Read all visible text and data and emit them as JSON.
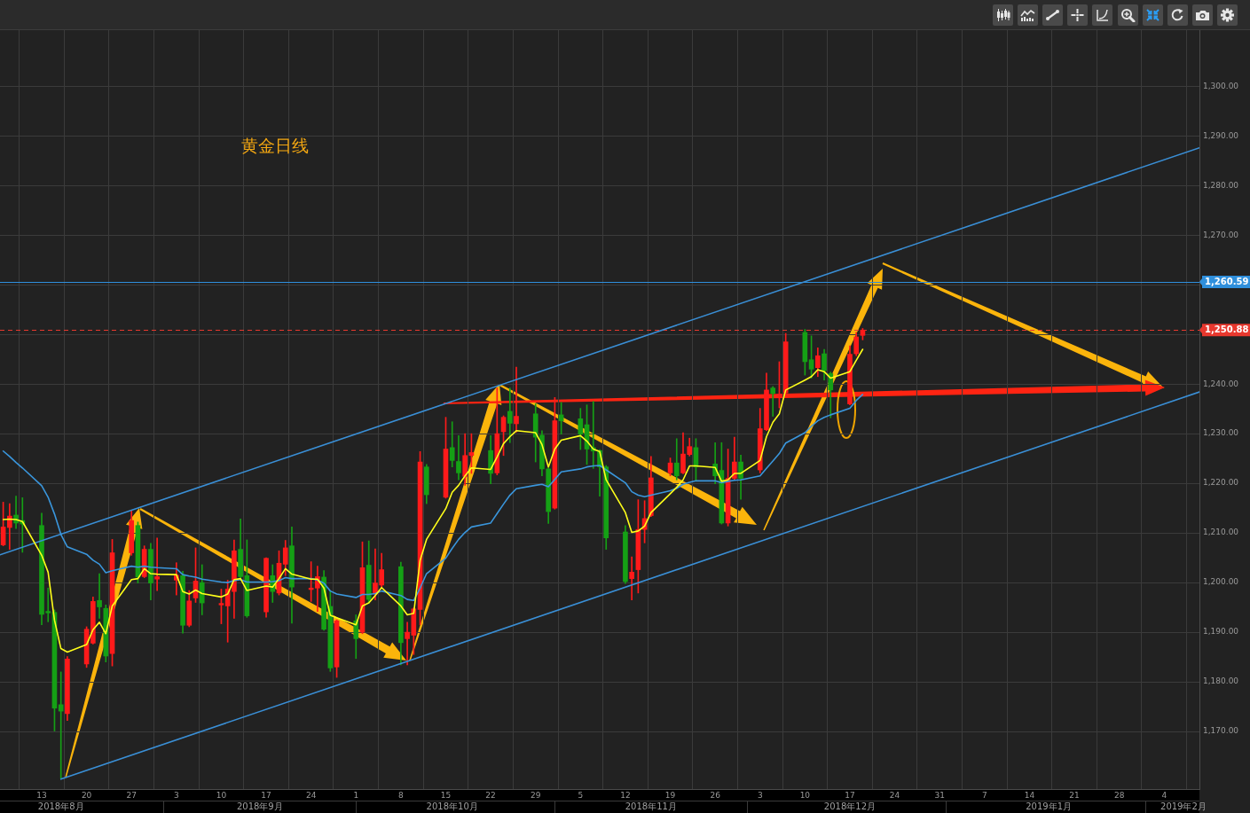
{
  "chart_data": {
    "type": "candlestick",
    "title": "黄金日线",
    "x": [
      "2018-08-07",
      "2018-08-08",
      "2018-08-09",
      "2018-08-10",
      "2018-08-13",
      "2018-08-14",
      "2018-08-15",
      "2018-08-16",
      "2018-08-17",
      "2018-08-20",
      "2018-08-21",
      "2018-08-22",
      "2018-08-23",
      "2018-08-24",
      "2018-08-27",
      "2018-08-28",
      "2018-08-29",
      "2018-08-30",
      "2018-08-31",
      "2018-09-03",
      "2018-09-04",
      "2018-09-05",
      "2018-09-06",
      "2018-09-07",
      "2018-09-10",
      "2018-09-11",
      "2018-09-12",
      "2018-09-13",
      "2018-09-14",
      "2018-09-17",
      "2018-09-18",
      "2018-09-19",
      "2018-09-20",
      "2018-09-21",
      "2018-09-24",
      "2018-09-25",
      "2018-09-26",
      "2018-09-27",
      "2018-09-28",
      "2018-10-01",
      "2018-10-02",
      "2018-10-03",
      "2018-10-04",
      "2018-10-05",
      "2018-10-08",
      "2018-10-09",
      "2018-10-10",
      "2018-10-11",
      "2018-10-12",
      "2018-10-15",
      "2018-10-16",
      "2018-10-17",
      "2018-10-18",
      "2018-10-19",
      "2018-10-22",
      "2018-10-23",
      "2018-10-24",
      "2018-10-25",
      "2018-10-26",
      "2018-10-29",
      "2018-10-30",
      "2018-10-31",
      "2018-11-01",
      "2018-11-02",
      "2018-11-05",
      "2018-11-06",
      "2018-11-07",
      "2018-11-08",
      "2018-11-09",
      "2018-11-12",
      "2018-11-13",
      "2018-11-14",
      "2018-11-15",
      "2018-11-16",
      "2018-11-19",
      "2018-11-20",
      "2018-11-21",
      "2018-11-22",
      "2018-11-23",
      "2018-11-26",
      "2018-11-27",
      "2018-11-28",
      "2018-11-29",
      "2018-11-30",
      "2018-12-03",
      "2018-12-04",
      "2018-12-05",
      "2018-12-06",
      "2018-12-07",
      "2018-12-10",
      "2018-12-11",
      "2018-12-12",
      "2018-12-13",
      "2018-12-14",
      "2018-12-17",
      "2018-12-18",
      "2018-12-19"
    ],
    "ohlc": [
      [
        1207.6,
        1216.2,
        1207.4,
        1211.2
      ],
      [
        1211.1,
        1215.9,
        1206.7,
        1213.4
      ],
      [
        1213.6,
        1217.4,
        1210.9,
        1212.0
      ],
      [
        1212.5,
        1217.1,
        1206.1,
        1211.8
      ],
      [
        1211.5,
        1214.0,
        1191.5,
        1193.6
      ],
      [
        1194.2,
        1198.9,
        1192.1,
        1193.9
      ],
      [
        1194.0,
        1194.5,
        1170.1,
        1174.7
      ],
      [
        1175.4,
        1182.0,
        1160.6,
        1174.1
      ],
      [
        1173.6,
        1185.1,
        1172.2,
        1184.6
      ],
      [
        1183.6,
        1191.1,
        1182.9,
        1190.6
      ],
      [
        1187.8,
        1197.1,
        1187.6,
        1196.2
      ],
      [
        1196.4,
        1201.8,
        1192.8,
        1195.1
      ],
      [
        1194.8,
        1195.5,
        1184.0,
        1185.2
      ],
      [
        1185.7,
        1208.7,
        1183.2,
        1206.0
      ],
      [
        1206.0,
        1214.5,
        1205.5,
        1212.5
      ],
      [
        1211.5,
        1212.2,
        1199.9,
        1201.1
      ],
      [
        1201.2,
        1207.4,
        1201.0,
        1206.7
      ],
      [
        1206.7,
        1207.9,
        1196.5,
        1199.9
      ],
      [
        1200.7,
        1209.0,
        1198.4,
        1201.2
      ],
      [
        1200.5,
        1204.0,
        1197.5,
        1201.5
      ],
      [
        1201.4,
        1202.3,
        1189.8,
        1191.4
      ],
      [
        1191.4,
        1198.4,
        1191.1,
        1196.3
      ],
      [
        1196.9,
        1207.0,
        1196.0,
        1200.3
      ],
      [
        1200.0,
        1203.6,
        1193.5,
        1195.9
      ],
      [
        1195.5,
        1198.7,
        1191.7,
        1195.8
      ],
      [
        1195.3,
        1200.5,
        1188.0,
        1198.7
      ],
      [
        1198.2,
        1208.6,
        1192.8,
        1206.4
      ],
      [
        1206.7,
        1212.8,
        1200.5,
        1201.2
      ],
      [
        1201.4,
        1208.6,
        1193.0,
        1193.3
      ],
      [
        1194.1,
        1205.0,
        1193.0,
        1204.9
      ],
      [
        1201.4,
        1203.6,
        1196.0,
        1198.2
      ],
      [
        1197.9,
        1206.4,
        1197.5,
        1203.9
      ],
      [
        1203.7,
        1208.5,
        1201.4,
        1207.0
      ],
      [
        1207.4,
        1211.2,
        1191.8,
        1199.1
      ],
      [
        1198.6,
        1204.2,
        1196.2,
        1198.9
      ],
      [
        1198.9,
        1203.3,
        1194.2,
        1201.2
      ],
      [
        1201.1,
        1202.4,
        1190.4,
        1190.6
      ],
      [
        1195.2,
        1198.3,
        1182.1,
        1182.8
      ],
      [
        1183.0,
        1192.5,
        1180.9,
        1192.3
      ],
      [
        1192.3,
        1193.5,
        1184.7,
        1188.7
      ],
      [
        1190.0,
        1208.2,
        1189.7,
        1203.0
      ],
      [
        1203.5,
        1208.4,
        1195.8,
        1196.6
      ],
      [
        1197.7,
        1206.8,
        1196.5,
        1199.9
      ],
      [
        1199.5,
        1205.9,
        1199.0,
        1202.6
      ],
      [
        1203.2,
        1204.1,
        1183.4,
        1187.9
      ],
      [
        1188.7,
        1192.0,
        1183.4,
        1190.0
      ],
      [
        1189.4,
        1194.9,
        1185.5,
        1194.7
      ],
      [
        1194.6,
        1226.4,
        1191.5,
        1224.3
      ],
      [
        1223.3,
        1223.8,
        1215.9,
        1217.7
      ],
      [
        1217.2,
        1233.3,
        1217.0,
        1226.9
      ],
      [
        1227.2,
        1232.4,
        1223.3,
        1224.6
      ],
      [
        1224.4,
        1229.6,
        1220.7,
        1222.1
      ],
      [
        1221.4,
        1230.0,
        1219.6,
        1225.6
      ],
      [
        1225.6,
        1230.0,
        1222.0,
        1226.2
      ],
      [
        1226.6,
        1229.6,
        1219.9,
        1222.0
      ],
      [
        1222.1,
        1239.2,
        1221.7,
        1230.0
      ],
      [
        1230.4,
        1233.6,
        1225.6,
        1233.3
      ],
      [
        1234.5,
        1239.2,
        1228.2,
        1232.1
      ],
      [
        1232.0,
        1243.4,
        1230.3,
        1233.5
      ],
      [
        1234.0,
        1236.0,
        1224.3,
        1229.3
      ],
      [
        1229.7,
        1230.6,
        1221.5,
        1222.9
      ],
      [
        1222.9,
        1223.1,
        1211.9,
        1214.3
      ],
      [
        1215.0,
        1237.3,
        1214.8,
        1232.6
      ],
      [
        1233.8,
        1236.3,
        1229.9,
        1232.6
      ],
      [
        1233.0,
        1235.1,
        1226.8,
        1229.9
      ],
      [
        1231.8,
        1235.8,
        1223.8,
        1226.9
      ],
      [
        1227.2,
        1236.5,
        1223.0,
        1226.5
      ],
      [
        1226.6,
        1226.8,
        1217.4,
        1223.3
      ],
      [
        1223.3,
        1223.6,
        1206.7,
        1209.0
      ],
      [
        1210.2,
        1211.5,
        1199.8,
        1200.2
      ],
      [
        1200.8,
        1205.2,
        1196.5,
        1202.1
      ],
      [
        1202.6,
        1216.7,
        1197.9,
        1210.7
      ],
      [
        1210.7,
        1216.5,
        1208.0,
        1212.9
      ],
      [
        1213.5,
        1225.4,
        1213.3,
        1221.1
      ],
      [
        1222.1,
        1225.1,
        1221.5,
        1224.1
      ],
      [
        1224.1,
        1229.0,
        1220.7,
        1221.5
      ],
      [
        1222.1,
        1230.2,
        1221.9,
        1225.9
      ],
      [
        1225.8,
        1229.1,
        1225.5,
        1227.4
      ],
      [
        1227.2,
        1229.0,
        1220.5,
        1223.3
      ],
      [
        1223.9,
        1228.2,
        1219.9,
        1221.5
      ],
      [
        1222.6,
        1228.2,
        1211.8,
        1212.0
      ],
      [
        1212.0,
        1226.9,
        1211.4,
        1221.0
      ],
      [
        1221.0,
        1229.3,
        1220.7,
        1224.3
      ],
      [
        1224.3,
        1225.7,
        1216.8,
        1221.0
      ],
      [
        1222.7,
        1235.1,
        1222.1,
        1231.0
      ],
      [
        1230.8,
        1242.2,
        1230.6,
        1238.8
      ],
      [
        1239.2,
        1239.5,
        1233.5,
        1238.1
      ],
      [
        1237.5,
        1244.5,
        1235.2,
        1237.9
      ],
      [
        1238.2,
        1250.2,
        1238.0,
        1248.5
      ],
      [
        1250.4,
        1251.0,
        1241.8,
        1244.5
      ],
      [
        1244.9,
        1249.7,
        1241.2,
        1243.0
      ],
      [
        1243.3,
        1247.3,
        1241.5,
        1245.7
      ],
      [
        1246.1,
        1247.0,
        1240.8,
        1242.7
      ],
      [
        1242.1,
        1242.4,
        1233.2,
        1238.8
      ],
      [
        1236.0,
        1247.7,
        1235.8,
        1246.0
      ],
      [
        1246.1,
        1250.4,
        1245.7,
        1249.5
      ],
      [
        1249.8,
        1251.2,
        1248.9,
        1250.88
      ]
    ],
    "colors": [
      "#ff1a1a",
      "#ff1a1a",
      "#15a015",
      "#15a015",
      "#15a015",
      "#15a015",
      "#15a015",
      "#15a015",
      "#ff1a1a",
      "#ff1a1a",
      "#ff1a1a",
      "#15a015",
      "#15a015",
      "#ff1a1a",
      "#ff1a1a",
      "#15a015",
      "#ff1a1a",
      "#15a015",
      "#ff1a1a",
      "#ff1a1a",
      "#15a015",
      "#ff1a1a",
      "#ff1a1a",
      "#15a015",
      "#ff1a1a",
      "#ff1a1a",
      "#ff1a1a",
      "#15a015",
      "#15a015",
      "#ff1a1a",
      "#15a015",
      "#ff1a1a",
      "#ff1a1a",
      "#15a015",
      "#ff1a1a",
      "#ff1a1a",
      "#15a015",
      "#15a015",
      "#ff1a1a",
      "#15a015",
      "#ff1a1a",
      "#15a015",
      "#ff1a1a",
      "#ff1a1a",
      "#15a015",
      "#ff1a1a",
      "#ff1a1a",
      "#ff1a1a",
      "#15a015",
      "#ff1a1a",
      "#15a015",
      "#15a015",
      "#ff1a1a",
      "#ff1a1a",
      "#15a015",
      "#ff1a1a",
      "#ff1a1a",
      "#15a015",
      "#ff1a1a",
      "#15a015",
      "#15a015",
      "#15a015",
      "#ff1a1a",
      "#15a015",
      "#15a015",
      "#15a015",
      "#15a015",
      "#15a015",
      "#15a015",
      "#15a015",
      "#ff1a1a",
      "#ff1a1a",
      "#ff1a1a",
      "#ff1a1a",
      "#ff1a1a",
      "#15a015",
      "#ff1a1a",
      "#ff1a1a",
      "#15a015",
      "#15a015",
      "#15a015",
      "#ff1a1a",
      "#ff1a1a",
      "#15a015",
      "#ff1a1a",
      "#ff1a1a",
      "#15a015",
      "#ff1a1a",
      "#ff1a1a",
      "#15a015",
      "#15a015",
      "#ff1a1a",
      "#15a015",
      "#15a015",
      "#ff1a1a",
      "#ff1a1a",
      "#ff1a1a"
    ],
    "series": [
      {
        "type": "line",
        "color": "#ffff1a",
        "values": [
          1212.7,
          1212.8,
          1212.7,
          1212.3,
          1205.5,
          1202.1,
          1192.4,
          1186.7,
          1186.0,
          1187.5,
          1190.5,
          1192.0,
          1189.7,
          1195.3,
          1200.6,
          1200.8,
          1202.8,
          1201.8,
          1201.7,
          1201.6,
          1198.2,
          1197.7,
          1198.5,
          1197.8,
          1197.1,
          1197.7,
          1200.6,
          1200.8,
          1198.4,
          1199.3,
          1199.1,
          1200.8,
          1202.8,
          1201.7,
          1200.7,
          1200.7,
          1198.9,
          1193.4,
          1192.9,
          1191.5,
          1195.3,
          1195.9,
          1197.4,
          1199.0,
          1195.3,
          1193.5,
          1193.8,
          1204.5,
          1208.7,
          1214.9,
          1218.2,
          1219.6,
          1221.5,
          1223.1,
          1222.8,
          1225.3,
          1228.0,
          1229.4,
          1230.6,
          1230.2,
          1227.8,
          1223.3,
          1226.9,
          1228.7,
          1229.6,
          1228.5,
          1226.9,
          1226.4,
          1220.7,
          1214.1,
          1210.1,
          1210.4,
          1211.4,
          1214.1,
          1217.9,
          1219.2,
          1220.7,
          1223.5,
          1223.5,
          1223.2,
          1220.4,
          1220.7,
          1222.0,
          1222.0,
          1224.6,
          1229.4,
          1232.3,
          1234.0,
          1238.8,
          1240.8,
          1241.5,
          1242.9,
          1242.5,
          1241.2,
          1242.5,
          1244.8,
          1247.0
        ]
      },
      {
        "type": "line",
        "color": "#3a96dc",
        "values": [
          1226.5,
          1225.4,
          1224.2,
          1223.1,
          1219.5,
          1217.2,
          1213.8,
          1209.7,
          1207.2,
          1205.7,
          1204.5,
          1203.7,
          1202.0,
          1202.4,
          1203.3,
          1203.1,
          1203.3,
          1203.1,
          1203.0,
          1202.8,
          1201.6,
          1201.3,
          1201.1,
          1200.7,
          1200.1,
          1200.0,
          1200.4,
          1200.6,
          1200.1,
          1200.1,
          1200.2,
          1200.4,
          1201.0,
          1200.8,
          1200.8,
          1200.5,
          1199.9,
          1198.3,
          1197.7,
          1197.0,
          1197.6,
          1197.6,
          1197.8,
          1198.3,
          1197.4,
          1196.6,
          1196.4,
          1198.9,
          1201.8,
          1204.9,
          1206.9,
          1208.7,
          1210.1,
          1211.2,
          1212.0,
          1213.9,
          1215.8,
          1217.6,
          1218.9,
          1219.6,
          1219.8,
          1219.3,
          1220.8,
          1222.3,
          1222.9,
          1223.3,
          1223.5,
          1223.6,
          1222.7,
          1220.1,
          1218.3,
          1217.6,
          1217.3,
          1217.6,
          1218.5,
          1219.0,
          1219.8,
          1220.2,
          1220.5,
          1220.5,
          1220.1,
          1220.4,
          1220.6,
          1220.7,
          1221.5,
          1223.0,
          1224.5,
          1226.0,
          1228.1,
          1230.2,
          1231.5,
          1232.6,
          1233.3,
          1233.8,
          1235.1,
          1236.7,
          1237.9
        ]
      },
      {
        "type": "line",
        "color": "#3a8fd6",
        "x": [
          "2018-08-06T12:00",
          "2019-02-09T12:00"
        ],
        "values": [
          1205.6,
          1287.6
        ]
      },
      {
        "type": "line",
        "color": "#3a8fd6",
        "x": [
          "2018-08-16",
          "2019-02-09T12:00"
        ],
        "values": [
          1160.4,
          1238.4
        ]
      }
    ],
    "xlim": [
      "2018-08-06T12:00",
      "2019-02-09T12:00"
    ],
    "xticks": [
      {
        "value": "2018-08-13",
        "label": "13"
      },
      {
        "value": "2018-08-20",
        "label": "20"
      },
      {
        "value": "2018-08-27",
        "label": "27"
      },
      {
        "value": "2018-09-03",
        "label": "3"
      },
      {
        "value": "2018-09-10",
        "label": "10"
      },
      {
        "value": "2018-09-17",
        "label": "17"
      },
      {
        "value": "2018-09-24",
        "label": "24"
      },
      {
        "value": "2018-10-01",
        "label": "1"
      },
      {
        "value": "2018-10-08",
        "label": "8"
      },
      {
        "value": "2018-10-15",
        "label": "15"
      },
      {
        "value": "2018-10-22",
        "label": "22"
      },
      {
        "value": "2018-10-29",
        "label": "29"
      },
      {
        "value": "2018-11-05",
        "label": "5"
      },
      {
        "value": "2018-11-12",
        "label": "12"
      },
      {
        "value": "2018-11-19",
        "label": "19"
      },
      {
        "value": "2018-11-26",
        "label": "26"
      },
      {
        "value": "2018-12-03",
        "label": "3"
      },
      {
        "value": "2018-12-10",
        "label": "10"
      },
      {
        "value": "2018-12-17",
        "label": "17"
      },
      {
        "value": "2018-12-24",
        "label": "24"
      },
      {
        "value": "2018-12-31",
        "label": "31"
      },
      {
        "value": "2019-01-07",
        "label": "7"
      },
      {
        "value": "2019-01-14",
        "label": "14"
      },
      {
        "value": "2019-01-21",
        "label": "21"
      },
      {
        "value": "2019-01-28",
        "label": "28"
      },
      {
        "value": "2019-02-04",
        "label": "4"
      }
    ],
    "x2lim": [
      "2018-08-06T12:00",
      "2019-02-09T12:00"
    ],
    "x2ticks": [
      {
        "value": "2018-08-16",
        "label": "2018年8月"
      },
      {
        "value": "2018-09-16",
        "label": "2018年9月"
      },
      {
        "value": "2018-10-16",
        "label": "2018年10月"
      },
      {
        "value": "2018-11-16",
        "label": "2018年11月"
      },
      {
        "value": "2018-12-17",
        "label": "2018年12月"
      },
      {
        "value": "2019-01-17",
        "label": "2019年1月"
      },
      {
        "value": "2019-02-07",
        "label": "2019年2月"
      }
    ],
    "ylim": [
      1158.4,
      1311.3
    ],
    "yticks": [
      {
        "value": 1170,
        "label": "1,170.00"
      },
      {
        "value": 1180,
        "label": "1,180.00"
      },
      {
        "value": 1190,
        "label": "1,190.00"
      },
      {
        "value": 1200,
        "label": "1,200.00"
      },
      {
        "value": 1210,
        "label": "1,210.00"
      },
      {
        "value": 1220,
        "label": "1,220.00"
      },
      {
        "value": 1230,
        "label": "1,230.00"
      },
      {
        "value": 1240,
        "label": "1,240.00"
      },
      {
        "value": 1250,
        "label": null
      },
      {
        "value": 1260,
        "label": null
      },
      {
        "value": 1270,
        "label": "1,270.00"
      },
      {
        "value": 1280,
        "label": "1,280.00"
      },
      {
        "value": 1290,
        "label": "1,290.00"
      },
      {
        "value": 1300,
        "label": "1,300.00"
      }
    ],
    "ref_lines": [
      {
        "axis": "y",
        "value": 1260.59,
        "label": "1,260.59",
        "color": "#2f8fdc"
      },
      {
        "axis": "y",
        "value": 1250.88,
        "label": "1,250.88",
        "color": "#e8382e",
        "line_style": "dashed"
      }
    ],
    "grid": true,
    "marker": "none"
  }
}
